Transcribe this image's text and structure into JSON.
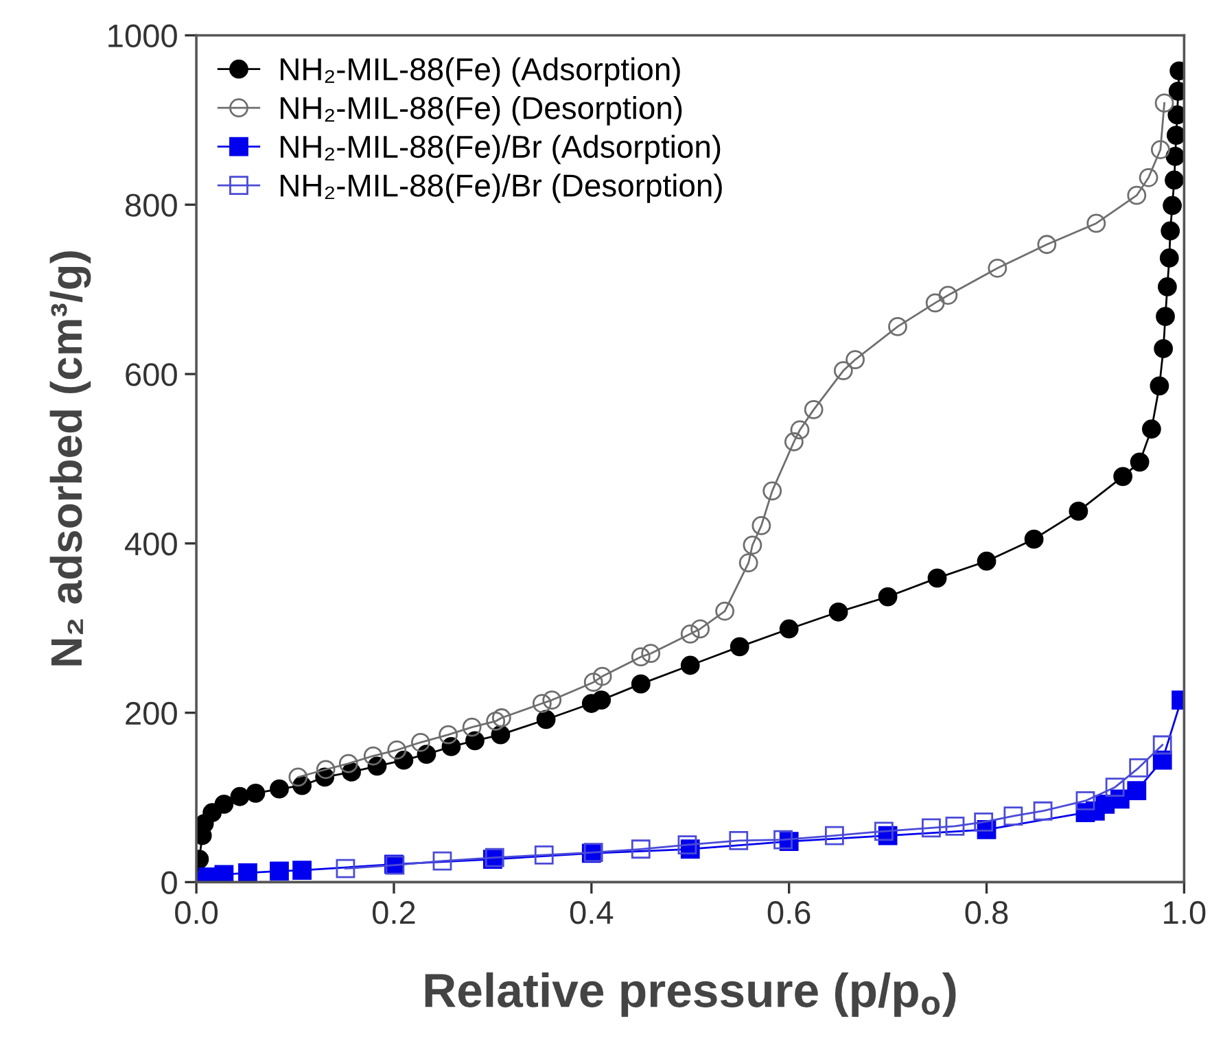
{
  "chart_data": {
    "type": "line",
    "xlabel": "Relative pressure (p/p$_{o}$)",
    "ylabel": "N₂ adsorbed (cm³/g)",
    "xlim": [
      0,
      1.0
    ],
    "xticks": [
      {
        "value": 0,
        "label": "0.0"
      },
      0.2,
      0.4,
      0.6,
      0.8,
      {
        "value": 1.0,
        "label": "1.0"
      }
    ],
    "ylim": [
      0,
      1000
    ],
    "yticks": [
      0,
      200,
      400,
      600,
      800,
      1000
    ],
    "grid": false,
    "legend": "top left",
    "line_style": "solid",
    "series": [
      {
        "name": "NH₂-MIL-88(Fe) (Adsorption)",
        "color": "#000000",
        "marker": "circle",
        "x": [
          0,
          0.003,
          0.006,
          0.008,
          0.016,
          0.028,
          0.044,
          0.06,
          0.084,
          0.107,
          0.13,
          0.157,
          0.183,
          0.21,
          0.233,
          0.258,
          0.282,
          0.308,
          0.354,
          0.4,
          0.41,
          0.45,
          0.5,
          0.55,
          0.6,
          0.65,
          0.7,
          0.75,
          0.8,
          0.848,
          0.893,
          0.938,
          0.955,
          0.967,
          0.975,
          0.979,
          0.981,
          0.983,
          0.985,
          0.986,
          0.988,
          0.99,
          0.991,
          0.992,
          0.993,
          0.994,
          0.995
        ],
        "values": [
          0,
          27,
          55,
          69,
          82,
          92,
          101,
          105,
          110,
          114,
          124,
          130,
          137,
          144,
          151,
          160,
          167,
          174,
          192,
          211,
          215,
          234,
          256,
          278,
          299,
          319,
          337,
          359,
          379,
          405,
          438,
          479,
          496,
          535,
          586,
          630,
          668,
          703,
          737,
          769,
          799,
          829,
          857,
          882,
          906,
          934,
          958
        ]
      },
      {
        "name": "NH₂-MIL-88(Fe) (Desorption)",
        "color": "#6e6e6e",
        "marker": "circle",
        "x": [
          0.98,
          0.976,
          0.964,
          0.952,
          0.911,
          0.861,
          0.811,
          0.761,
          0.748,
          0.71,
          0.667,
          0.655,
          0.625,
          0.611,
          0.605,
          0.583,
          0.572,
          0.563,
          0.559,
          0.535,
          0.51,
          0.5,
          0.46,
          0.45,
          0.411,
          0.402,
          0.36,
          0.35,
          0.309,
          0.303,
          0.279,
          0.255,
          0.227,
          0.203,
          0.179,
          0.154,
          0.131,
          0.103
        ],
        "values": [
          920,
          865,
          832,
          811,
          778,
          753,
          725,
          693,
          684,
          656,
          617,
          604,
          558,
          534,
          520,
          462,
          421,
          398,
          377,
          320,
          299,
          293,
          270,
          266,
          243,
          236,
          215,
          211,
          194,
          190,
          183,
          174,
          165,
          156,
          149,
          140,
          133,
          124
        ]
      },
      {
        "name": "NH₂-MIL-88(Fe)/Br (Adsorption)",
        "color": "#0000ee",
        "marker": "square",
        "x": [
          0,
          0.012,
          0.028,
          0.052,
          0.084,
          0.107,
          0.2,
          0.3,
          0.4,
          0.5,
          0.6,
          0.7,
          0.8,
          0.9,
          0.91,
          0.92,
          0.935,
          0.952,
          0.978,
          0.997
        ],
        "values": [
          0,
          6,
          9,
          11,
          13,
          14,
          21,
          27,
          34,
          39,
          48,
          55,
          62,
          82,
          84,
          92,
          98,
          108,
          144,
          215
        ]
      },
      {
        "name": "NH₂-MIL-88(Fe)/Br (Desorption)",
        "color": "#4a4ad8",
        "marker": "square",
        "x": [
          0.978,
          0.954,
          0.93,
          0.9,
          0.857,
          0.827,
          0.797,
          0.768,
          0.744,
          0.696,
          0.646,
          0.594,
          0.549,
          0.497,
          0.45,
          0.402,
          0.352,
          0.302,
          0.249,
          0.201,
          0.151
        ],
        "values": [
          162,
          135,
          112,
          96,
          84,
          78,
          71,
          66,
          64,
          60,
          55,
          50,
          49,
          44,
          39,
          35,
          32,
          29,
          25,
          20,
          16
        ]
      }
    ]
  }
}
